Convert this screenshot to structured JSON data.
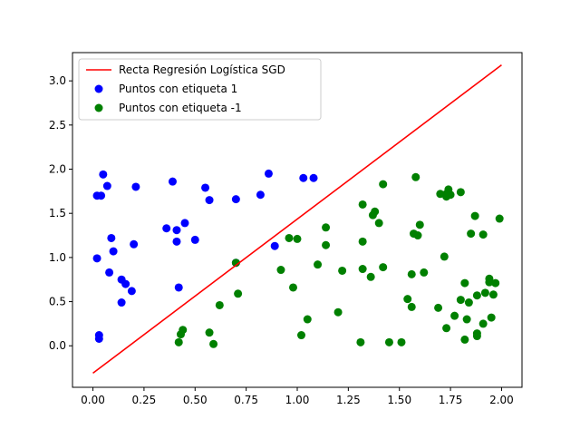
{
  "chart_data": {
    "type": "scatter",
    "title": "",
    "xlabel": "",
    "ylabel": "",
    "xlim": [
      -0.1,
      2.1
    ],
    "ylim": [
      -0.47,
      3.32
    ],
    "xticks": [
      "0.00",
      "0.25",
      "0.50",
      "0.75",
      "1.00",
      "1.25",
      "1.50",
      "1.75",
      "2.00"
    ],
    "yticks": [
      "0.0",
      "0.5",
      "1.0",
      "1.5",
      "2.0",
      "2.5",
      "3.0"
    ],
    "grid": false,
    "legend_position": "top-left",
    "line": {
      "name": "Recta Regresión Logística SGD",
      "color": "#ff0000",
      "x": [
        0.0,
        2.0
      ],
      "y": [
        -0.31,
        3.18
      ]
    },
    "series": [
      {
        "name": "Puntos con etiqueta 1",
        "color": "#0000ff",
        "points": [
          [
            0.02,
            1.7
          ],
          [
            0.04,
            1.7
          ],
          [
            0.05,
            1.94
          ],
          [
            0.07,
            1.81
          ],
          [
            0.21,
            1.8
          ],
          [
            0.39,
            1.86
          ],
          [
            0.55,
            1.79
          ],
          [
            0.57,
            1.65
          ],
          [
            0.7,
            1.66
          ],
          [
            0.82,
            1.71
          ],
          [
            0.86,
            1.95
          ],
          [
            1.03,
            1.9
          ],
          [
            1.08,
            1.9
          ],
          [
            0.09,
            1.22
          ],
          [
            0.1,
            1.07
          ],
          [
            0.02,
            0.99
          ],
          [
            0.08,
            0.83
          ],
          [
            0.14,
            0.75
          ],
          [
            0.16,
            0.7
          ],
          [
            0.19,
            0.62
          ],
          [
            0.14,
            0.49
          ],
          [
            0.2,
            1.15
          ],
          [
            0.36,
            1.33
          ],
          [
            0.41,
            1.31
          ],
          [
            0.41,
            1.18
          ],
          [
            0.45,
            1.39
          ],
          [
            0.5,
            1.2
          ],
          [
            0.42,
            0.66
          ],
          [
            0.7,
            0.94
          ],
          [
            0.89,
            1.13
          ],
          [
            0.03,
            0.12
          ],
          [
            0.03,
            0.08
          ]
        ]
      },
      {
        "name": "Puntos con etiqueta -1",
        "color": "#008000",
        "points": [
          [
            0.42,
            0.04
          ],
          [
            0.43,
            0.13
          ],
          [
            0.44,
            0.18
          ],
          [
            0.57,
            0.15
          ],
          [
            0.59,
            0.02
          ],
          [
            0.62,
            0.46
          ],
          [
            0.71,
            0.59
          ],
          [
            0.7,
            0.94
          ],
          [
            0.92,
            0.86
          ],
          [
            0.96,
            1.22
          ],
          [
            0.98,
            0.66
          ],
          [
            1.0,
            1.21
          ],
          [
            1.02,
            0.12
          ],
          [
            1.05,
            0.3
          ],
          [
            1.1,
            0.92
          ],
          [
            1.14,
            1.34
          ],
          [
            1.14,
            1.14
          ],
          [
            1.2,
            0.38
          ],
          [
            1.22,
            0.85
          ],
          [
            1.31,
            0.04
          ],
          [
            1.32,
            1.6
          ],
          [
            1.32,
            1.18
          ],
          [
            1.32,
            0.87
          ],
          [
            1.36,
            0.78
          ],
          [
            1.37,
            1.48
          ],
          [
            1.38,
            1.52
          ],
          [
            1.4,
            1.39
          ],
          [
            1.42,
            1.83
          ],
          [
            1.42,
            0.89
          ],
          [
            1.45,
            0.04
          ],
          [
            1.51,
            0.04
          ],
          [
            1.54,
            0.53
          ],
          [
            1.56,
            0.81
          ],
          [
            1.56,
            0.44
          ],
          [
            1.57,
            1.27
          ],
          [
            1.58,
            1.91
          ],
          [
            1.59,
            1.25
          ],
          [
            1.6,
            1.37
          ],
          [
            1.62,
            0.83
          ],
          [
            1.69,
            0.43
          ],
          [
            1.7,
            1.72
          ],
          [
            1.72,
            1.01
          ],
          [
            1.73,
            0.2
          ],
          [
            1.73,
            1.72
          ],
          [
            1.73,
            1.69
          ],
          [
            1.74,
            1.77
          ],
          [
            1.75,
            1.71
          ],
          [
            1.77,
            0.34
          ],
          [
            1.8,
            0.52
          ],
          [
            1.8,
            1.74
          ],
          [
            1.82,
            0.71
          ],
          [
            1.82,
            0.07
          ],
          [
            1.83,
            0.3
          ],
          [
            1.84,
            0.49
          ],
          [
            1.85,
            1.27
          ],
          [
            1.87,
            1.47
          ],
          [
            1.88,
            0.57
          ],
          [
            1.88,
            0.14
          ],
          [
            1.88,
            0.11
          ],
          [
            1.91,
            0.25
          ],
          [
            1.91,
            1.26
          ],
          [
            1.92,
            0.6
          ],
          [
            1.94,
            0.72
          ],
          [
            1.94,
            0.76
          ],
          [
            1.95,
            0.32
          ],
          [
            1.96,
            0.58
          ],
          [
            1.97,
            0.71
          ],
          [
            1.99,
            1.44
          ]
        ]
      }
    ]
  }
}
